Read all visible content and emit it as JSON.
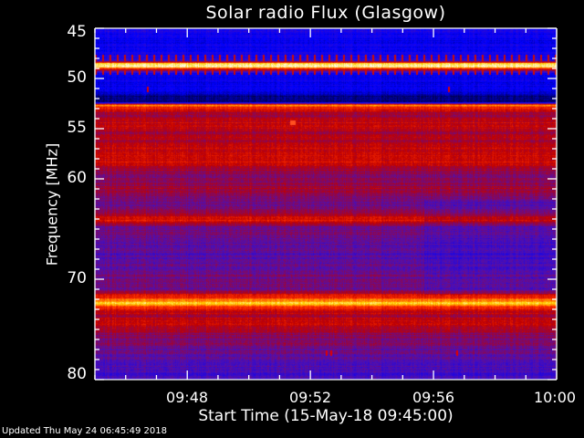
{
  "chart_data": {
    "type": "heatmap",
    "title": "Solar radio Flux (Glasgow)",
    "xlabel": "Start Time (15-May-18 09:45:00)",
    "ylabel": "Frequency [MHz]",
    "xlim": [
      "09:45",
      "10:00"
    ],
    "ylim": [
      80,
      45
    ],
    "x_ticks": [
      "09:48",
      "09:52",
      "09:56",
      "10:00"
    ],
    "y_ticks": [
      "45",
      "50",
      "55",
      "60",
      "70",
      "80"
    ],
    "colormap": [
      "#000000",
      "#0000ff",
      "#5010b0",
      "#c00000",
      "#ff3000",
      "#ffd000",
      "#ffffff"
    ],
    "intensity_profile": {
      "frequency_mhz": [
        45.0,
        45.5,
        46.0,
        47.5,
        48.2,
        48.5,
        48.8,
        49.1,
        49.5,
        50.0,
        51.0,
        51.7,
        52.3,
        52.6,
        52.9,
        53.5,
        54.5,
        55.5,
        57.0,
        58.0,
        59.0,
        60.0,
        61.0,
        62.0,
        63.0,
        64.2,
        64.6,
        66.0,
        68.0,
        69.5,
        71.0,
        72.1,
        72.4,
        72.7,
        73.5,
        74.5,
        76.0,
        78.0,
        79.0,
        80.0
      ],
      "relative_level": [
        0.3,
        0.27,
        0.25,
        0.27,
        0.36,
        0.96,
        0.93,
        0.55,
        0.25,
        0.25,
        0.27,
        0.14,
        0.12,
        0.8,
        0.68,
        0.52,
        0.62,
        0.55,
        0.6,
        0.64,
        0.55,
        0.5,
        0.55,
        0.47,
        0.49,
        0.66,
        0.48,
        0.44,
        0.42,
        0.48,
        0.47,
        0.8,
        0.9,
        0.7,
        0.57,
        0.59,
        0.49,
        0.44,
        0.4,
        0.38
      ]
    }
  },
  "footer": {
    "updated": "Updated Thu May 24 06:45:49 2018"
  }
}
